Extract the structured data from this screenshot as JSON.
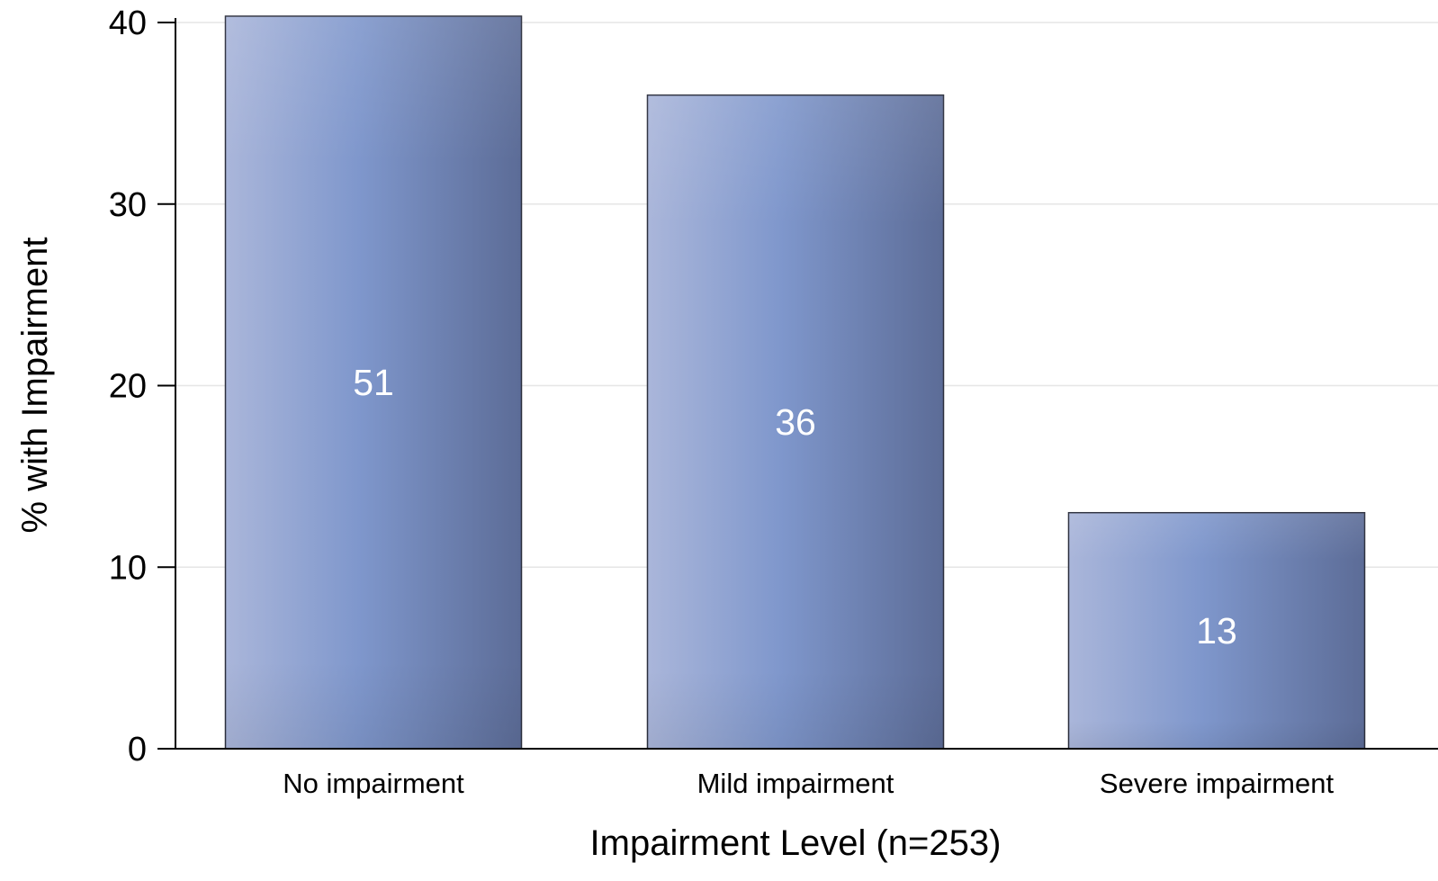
{
  "chart_data": {
    "type": "bar",
    "categories": [
      "No impairment",
      "Mild impairment",
      "Severe impairment"
    ],
    "values": [
      51,
      36,
      13
    ],
    "data_labels": [
      "51",
      "36",
      "13"
    ],
    "title": "",
    "xlabel": "Impairment Level (n=253)",
    "ylabel": "% with Impairment",
    "ylim": [
      0,
      40
    ],
    "yticks": [
      0,
      10,
      20,
      30,
      40
    ],
    "ytick_labels": [
      "0",
      "10",
      "20",
      "30",
      "40"
    ],
    "grid": true,
    "legend": "none",
    "colors": {
      "bar_light": "#aab6da",
      "bar_mid": "#7f97cc",
      "bar_dark": "#5c6c97",
      "bar_edge": "#2b2f3d",
      "grid": "#e6e6e6",
      "label": "#ffffff"
    }
  }
}
